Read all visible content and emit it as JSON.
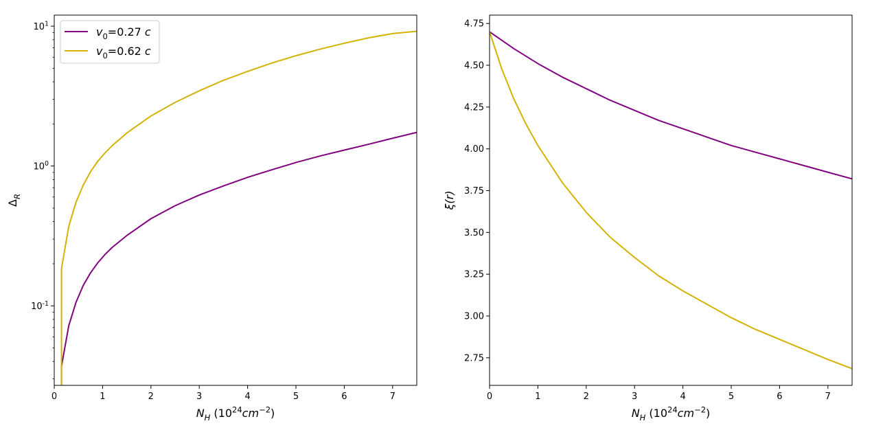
{
  "chart_data": [
    {
      "type": "line",
      "xlabel": "N_H (10^24 cm^-2)",
      "ylabel": "Δ_R",
      "xlim": [
        0,
        7.5
      ],
      "ylim": [
        0.027,
        12.0
      ],
      "yscale": "log",
      "x_ticks": [
        0,
        1,
        2,
        3,
        4,
        5,
        6,
        7
      ],
      "y_ticks": [
        {
          "value": 0.1,
          "label": "10^-1"
        },
        {
          "value": 1,
          "label": "10^0"
        },
        {
          "value": 10,
          "label": "10^1"
        }
      ],
      "grid": false,
      "legend_position": "top-left",
      "series": [
        {
          "name": "v0=0.27 c",
          "color": "#800080",
          "x": [
            0.15,
            0.15,
            0.3,
            0.45,
            0.6,
            0.75,
            0.9,
            1.05,
            1.2,
            1.5,
            2.0,
            2.5,
            3.0,
            3.5,
            4.0,
            4.5,
            5.0,
            5.5,
            6.0,
            6.5,
            7.0,
            7.5
          ],
          "y": [
            0.02,
            0.037,
            0.072,
            0.106,
            0.14,
            0.172,
            0.203,
            0.233,
            0.262,
            0.318,
            0.42,
            0.52,
            0.62,
            0.72,
            0.83,
            0.94,
            1.06,
            1.18,
            1.3,
            1.43,
            1.58,
            1.74
          ]
        },
        {
          "name": "v0=0.62 c",
          "color": "#d4b200",
          "x": [
            0.15,
            0.15,
            0.3,
            0.45,
            0.6,
            0.75,
            0.9,
            1.05,
            1.2,
            1.5,
            2.0,
            2.5,
            3.0,
            3.5,
            4.0,
            4.5,
            5.0,
            5.5,
            6.0,
            6.5,
            7.0,
            7.5
          ],
          "y": [
            0.02,
            0.185,
            0.37,
            0.55,
            0.73,
            0.91,
            1.08,
            1.24,
            1.4,
            1.72,
            2.28,
            2.85,
            3.45,
            4.1,
            4.75,
            5.45,
            6.15,
            6.85,
            7.55,
            8.25,
            8.85,
            9.2
          ]
        }
      ]
    },
    {
      "type": "line",
      "xlabel": "N_H (10^24 cm^-2)",
      "ylabel": "ξ(r)",
      "xlim": [
        0,
        7.5
      ],
      "ylim": [
        2.585,
        4.8
      ],
      "yscale": "linear",
      "x_ticks": [
        0,
        1,
        2,
        3,
        4,
        5,
        6,
        7
      ],
      "y_ticks": [
        2.75,
        3.0,
        3.25,
        3.5,
        3.75,
        4.0,
        4.25,
        4.5,
        4.75
      ],
      "grid": false,
      "series": [
        {
          "name": "v0=0.27 c",
          "color": "#800080",
          "x": [
            0,
            0.5,
            1,
            1.5,
            2,
            2.5,
            3,
            3.5,
            4,
            4.5,
            5,
            5.5,
            6,
            6.5,
            7,
            7.5
          ],
          "y": [
            4.7,
            4.6,
            4.51,
            4.43,
            4.36,
            4.29,
            4.23,
            4.17,
            4.12,
            4.07,
            4.02,
            3.98,
            3.94,
            3.9,
            3.86,
            3.82
          ]
        },
        {
          "name": "v0=0.62 c",
          "color": "#d4b200",
          "x": [
            0,
            0.25,
            0.5,
            0.75,
            1,
            1.5,
            2,
            2.5,
            3,
            3.5,
            4,
            4.5,
            5,
            5.5,
            6,
            6.5,
            7,
            7.5
          ],
          "y": [
            4.7,
            4.48,
            4.3,
            4.15,
            4.02,
            3.8,
            3.62,
            3.47,
            3.35,
            3.24,
            3.15,
            3.07,
            2.99,
            2.92,
            2.86,
            2.8,
            2.74,
            2.685
          ]
        }
      ]
    }
  ]
}
